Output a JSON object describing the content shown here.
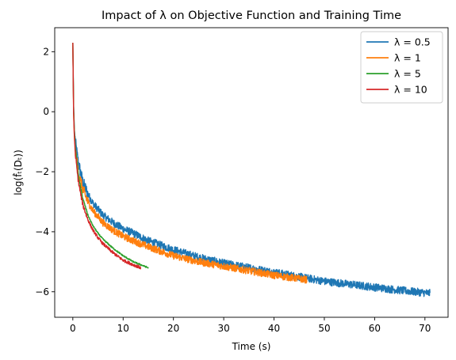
{
  "chart_data": {
    "type": "line",
    "title": "Impact of λ on Objective Function and Training Time",
    "xlabel": "Time (s)",
    "ylabel": "log(f̂ₜ(Dₜ))",
    "xlim": [
      -3.6,
      74.6
    ],
    "ylim": [
      -6.85,
      2.8
    ],
    "xticks": [
      0,
      10,
      20,
      30,
      40,
      50,
      60,
      70
    ],
    "yticks": [
      -6,
      -4,
      -2,
      0,
      2
    ],
    "xtick_labels": [
      "0",
      "10",
      "20",
      "30",
      "40",
      "50",
      "60",
      "70"
    ],
    "ytick_labels": [
      "−6",
      "−4",
      "−2",
      "0",
      "2"
    ],
    "grid": false,
    "legend_position": "top-right",
    "series": [
      {
        "name": "λ = 0.5",
        "color": "#1f77b4",
        "noise": 0.13,
        "x": [
          0,
          0.15,
          0.3,
          0.5,
          1,
          1.5,
          2,
          3,
          4,
          5,
          6,
          8,
          10,
          12,
          15,
          20,
          25,
          30,
          35,
          40,
          45,
          50,
          55,
          60,
          65,
          71
        ],
        "y": [
          2.3,
          0.2,
          -0.6,
          -1.0,
          -1.6,
          -2.0,
          -2.35,
          -2.75,
          -3.05,
          -3.25,
          -3.45,
          -3.7,
          -3.9,
          -4.05,
          -4.3,
          -4.6,
          -4.85,
          -5.05,
          -5.2,
          -5.35,
          -5.5,
          -5.65,
          -5.75,
          -5.85,
          -5.95,
          -6.05
        ]
      },
      {
        "name": "λ = 1",
        "color": "#ff7f0e",
        "noise": 0.12,
        "x": [
          0,
          0.15,
          0.3,
          0.5,
          1,
          1.5,
          2,
          3,
          4,
          5,
          6,
          8,
          10,
          12,
          15,
          20,
          25,
          30,
          35,
          40,
          46.5
        ],
        "y": [
          2.3,
          0.0,
          -0.8,
          -1.3,
          -1.9,
          -2.3,
          -2.6,
          -3.0,
          -3.3,
          -3.5,
          -3.7,
          -3.95,
          -4.15,
          -4.3,
          -4.5,
          -4.8,
          -5.0,
          -5.15,
          -5.3,
          -5.45,
          -5.6
        ]
      },
      {
        "name": "λ = 5",
        "color": "#2ca02c",
        "noise": 0.025,
        "x": [
          0,
          0.15,
          0.3,
          0.5,
          1,
          1.5,
          2,
          3,
          4,
          5,
          6,
          8,
          10,
          12,
          15
        ],
        "y": [
          2.3,
          0.2,
          -0.6,
          -1.2,
          -2.0,
          -2.5,
          -2.9,
          -3.45,
          -3.8,
          -4.05,
          -4.25,
          -4.55,
          -4.8,
          -5.0,
          -5.2
        ]
      },
      {
        "name": "λ = 10",
        "color": "#d62728",
        "noise": 0.05,
        "x": [
          0,
          0.15,
          0.3,
          0.5,
          1,
          1.5,
          2,
          3,
          4,
          5,
          6,
          8,
          10,
          12,
          13.5
        ],
        "y": [
          2.3,
          0.0,
          -0.8,
          -1.4,
          -2.2,
          -2.7,
          -3.1,
          -3.6,
          -3.95,
          -4.2,
          -4.4,
          -4.7,
          -4.95,
          -5.1,
          -5.2
        ]
      }
    ]
  }
}
